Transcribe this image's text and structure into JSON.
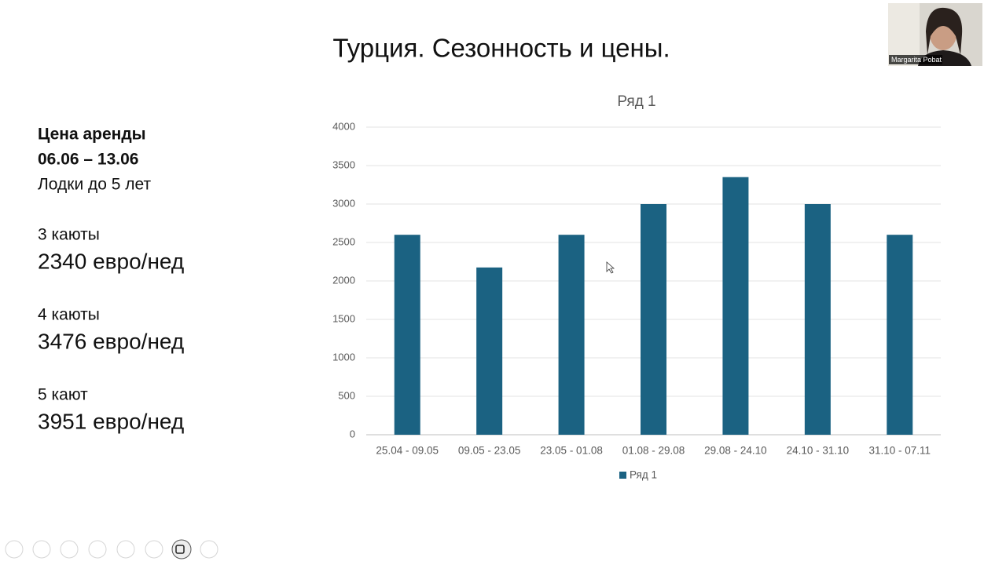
{
  "slide": {
    "title": "Турция. Сезонность и цены.",
    "heading": [
      "Цена аренды",
      "06.06 – 13.06"
    ],
    "subheading": "Лодки до 5 лет",
    "items": [
      {
        "label": "3 каюты",
        "price": "2340 евро/нед"
      },
      {
        "label": "4 каюты",
        "price": "3476 евро/нед"
      },
      {
        "label": "5 кают",
        "price": "3951 евро/нед"
      }
    ]
  },
  "video": {
    "name": "Margarita Pobat"
  },
  "chart_data": {
    "type": "bar",
    "title": "Ряд 1",
    "categories": [
      "25.04 - 09.05",
      "09.05 - 23.05",
      "23.05 - 01.08",
      "01.08 - 29.08",
      "29.08 - 24.10",
      "24.10 - 31.10",
      "31.10 - 07.11"
    ],
    "series": [
      {
        "name": "Ряд 1",
        "color": "#1b6282",
        "values": [
          2600,
          2175,
          2600,
          3000,
          3350,
          3000,
          2600
        ]
      }
    ],
    "ylim": [
      0,
      4000
    ],
    "yticks": [
      0,
      500,
      1000,
      1500,
      2000,
      2500,
      3000,
      3500,
      4000
    ],
    "grid": true,
    "legend": "bottom"
  }
}
